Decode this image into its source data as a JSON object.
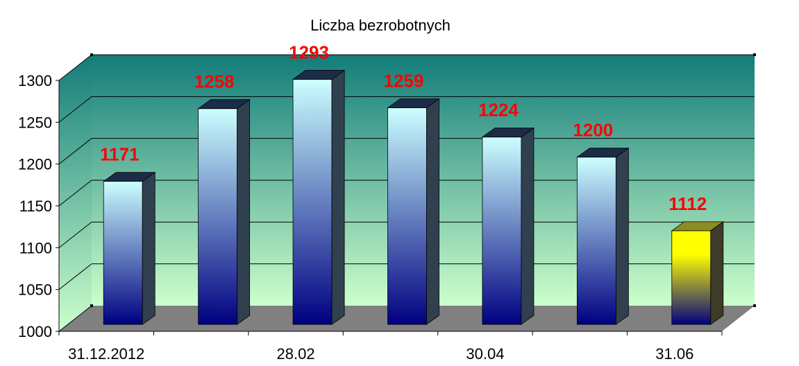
{
  "chart_data": {
    "type": "bar",
    "title": "Liczba bezrobotnych",
    "xlabel": "",
    "ylabel": "",
    "categories": [
      "31.12.2012",
      "",
      "28.02",
      "",
      "30.04",
      "",
      "31.06"
    ],
    "values": [
      1171,
      1258,
      1293,
      1259,
      1224,
      1200,
      1112
    ],
    "data_labels": [
      "1171",
      "1258",
      "1293",
      "1259",
      "1224",
      "1200",
      "1112"
    ],
    "highlight_index": 6,
    "ylim": [
      1000,
      1300
    ],
    "yticks": [
      1000,
      1050,
      1100,
      1150,
      1200,
      1250,
      1300
    ],
    "ytick_labels": [
      "1000",
      "1050",
      "1100",
      "1150",
      "1200",
      "1250",
      "1300"
    ],
    "grid": true,
    "legend": "none",
    "style": "3d-column",
    "colors": {
      "bar_top": "#ccffff",
      "bar_bottom": "#000080",
      "highlight_top": "#ffff00",
      "highlight_bottom": "#000080",
      "data_label": "#ff0000",
      "back_wall_top": "#127c7a",
      "back_wall_bottom": "#ccffcc",
      "floor": "#808080",
      "gridline": "#000000"
    }
  }
}
